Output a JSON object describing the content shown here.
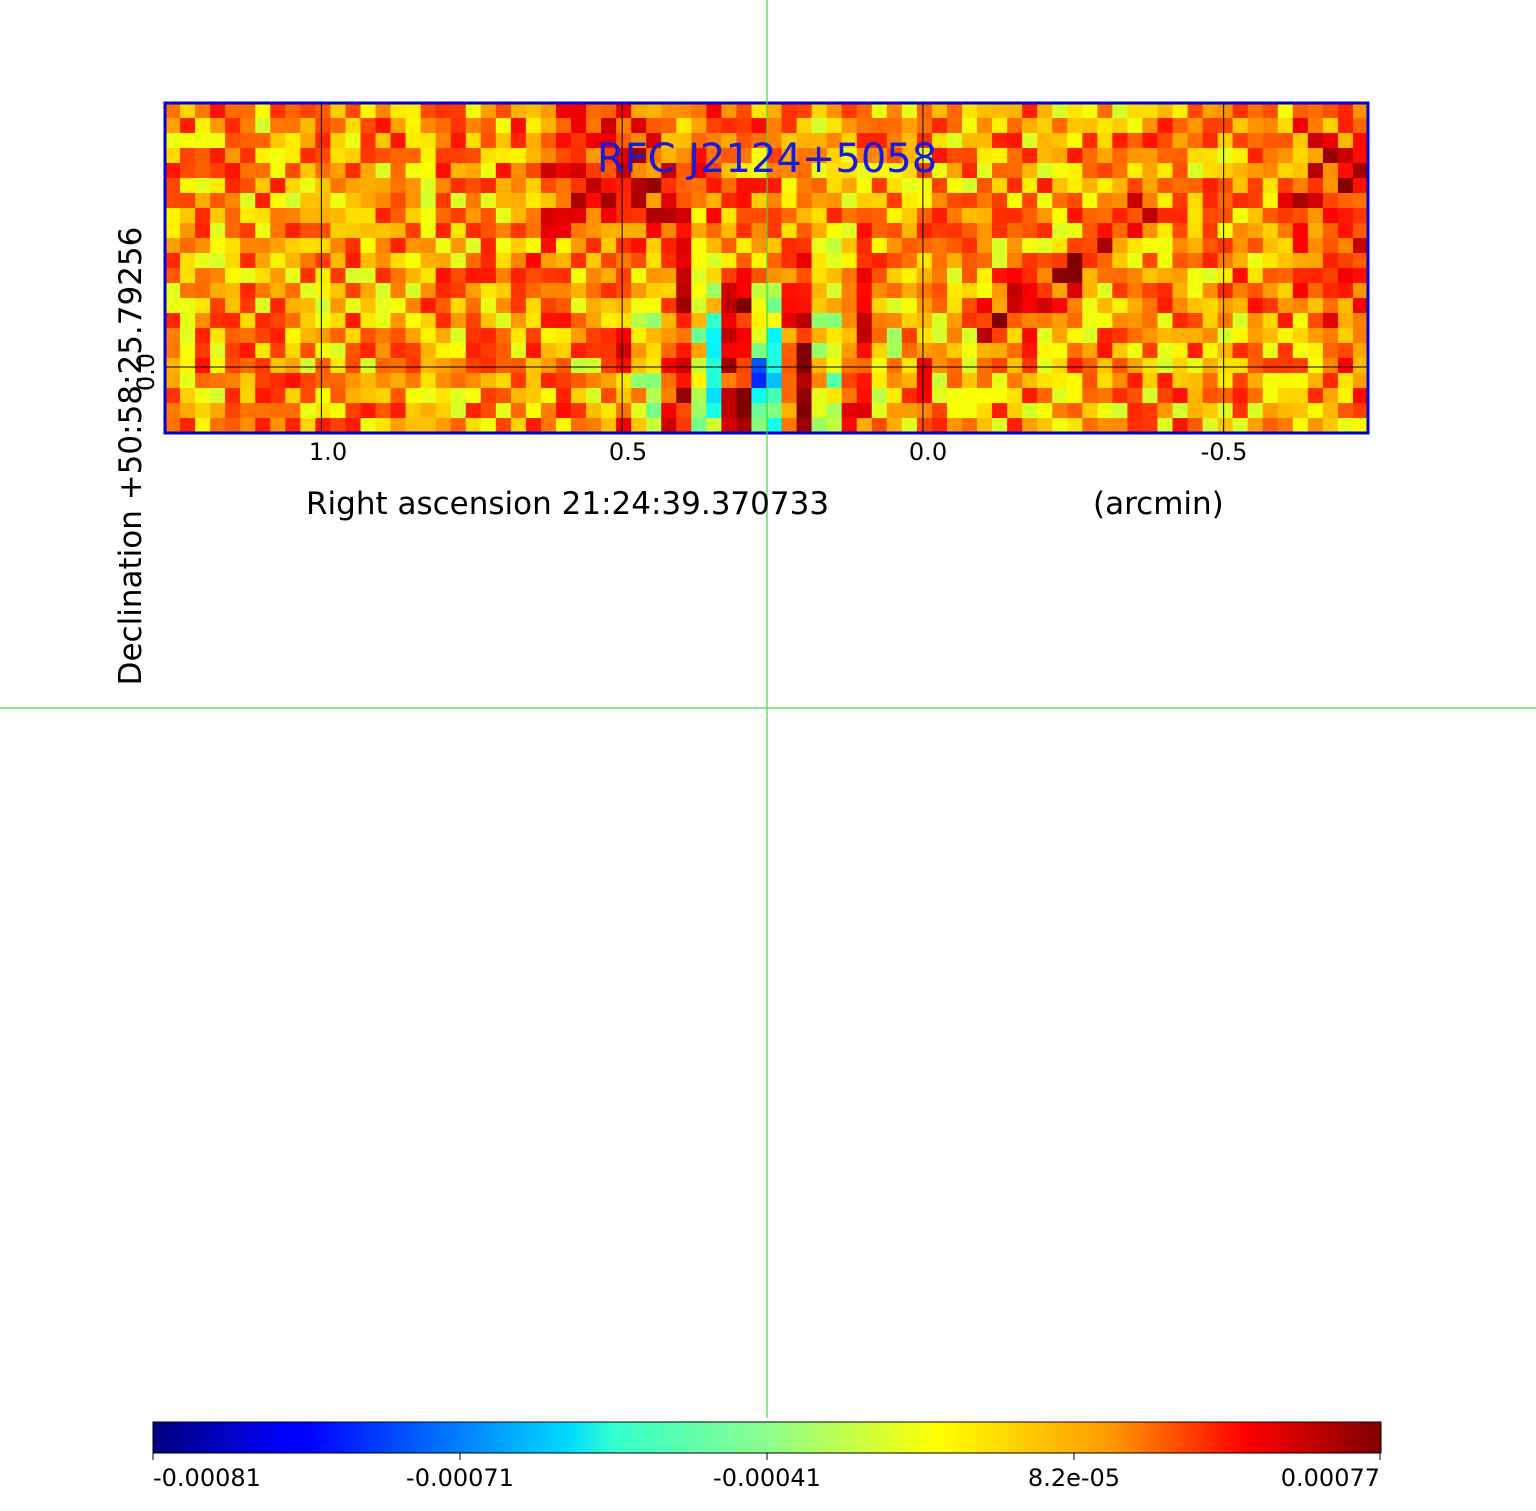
{
  "chart_data": {
    "type": "heatmap",
    "title": "RFC J2124+5058",
    "title_color": "#1a1adb",
    "frame_color": "#0000cc",
    "crosshair_color": "#3ddc3d",
    "xlabel": "Right ascension  21:24:39.370733",
    "xunit": "(arcmin)",
    "ylabel": "Declination  +50:58:25.79256",
    "xlim": [
      1.26,
      -0.74
    ],
    "ylim": [
      -0.11,
      0.44
    ],
    "x_ticks": [
      {
        "value": 1.0,
        "label": "1.0"
      },
      {
        "value": 0.5,
        "label": "0.5"
      },
      {
        "value": 0.0,
        "label": "0.0"
      },
      {
        "value": -0.5,
        "label": "-0.5"
      }
    ],
    "y_ticks": [
      {
        "value": 0.0,
        "label": "0.0"
      }
    ],
    "colorbar": {
      "colormap": "jet",
      "min": -0.00081,
      "max": 0.00077,
      "tick_labels": [
        "-0.00081",
        "-0.00071",
        "-0.00041",
        "8.2e-05",
        "0.00077"
      ]
    },
    "features": [
      {
        "name": "minimum",
        "x": 0.28,
        "y": -0.01,
        "value": -0.00081
      },
      {
        "name": "bright-ridge",
        "from": [
          -0.12,
          0.07
        ],
        "to": [
          -0.36,
          0.25
        ]
      },
      {
        "name": "bright-region",
        "x": 0.5,
        "y": 0.32
      },
      {
        "name": "bright-edge",
        "x": -0.7,
        "y": 0.27
      }
    ]
  }
}
